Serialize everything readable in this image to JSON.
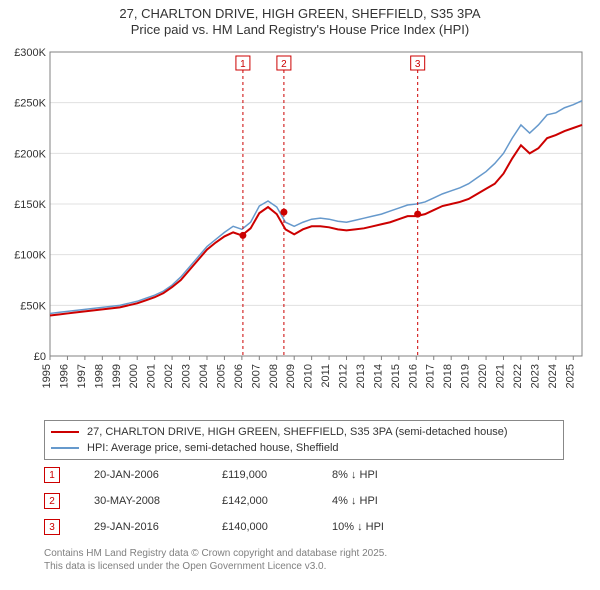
{
  "title": {
    "line1": "27, CHARLTON DRIVE, HIGH GREEN, SHEFFIELD, S35 3PA",
    "line2": "Price paid vs. HM Land Registry's House Price Index (HPI)",
    "fontsize": 13,
    "color": "#333333"
  },
  "chart": {
    "type": "line",
    "background_color": "#ffffff",
    "plot_border_color": "#808080",
    "grid_color": "#e0e0e0",
    "x": {
      "label_fontsize": 11,
      "label_color": "#333333",
      "ticks": [
        "1995",
        "1996",
        "1997",
        "1998",
        "1999",
        "2000",
        "2001",
        "2002",
        "2003",
        "2004",
        "2005",
        "2006",
        "2007",
        "2008",
        "2009",
        "2010",
        "2011",
        "2012",
        "2013",
        "2014",
        "2015",
        "2016",
        "2017",
        "2018",
        "2019",
        "2020",
        "2021",
        "2022",
        "2023",
        "2024",
        "2025"
      ],
      "lim": [
        1995,
        2025.5
      ]
    },
    "y": {
      "label_fontsize": 11,
      "label_color": "#333333",
      "ticks": [
        "£0",
        "£50K",
        "£100K",
        "£150K",
        "£200K",
        "£250K",
        "£300K"
      ],
      "lim": [
        0,
        300000
      ],
      "tick_step": 50000
    },
    "series": [
      {
        "name": "price_paid",
        "label": "27, CHARLTON DRIVE, HIGH GREEN, SHEFFIELD, S35 3PA (semi-detached house)",
        "color": "#cc0000",
        "line_width": 2,
        "x_start": 1995,
        "x_step": 0.5,
        "values": [
          40000,
          41000,
          42000,
          43000,
          44000,
          45000,
          46000,
          47000,
          48000,
          50000,
          52000,
          55000,
          58000,
          62000,
          68000,
          75000,
          85000,
          95000,
          105000,
          112000,
          118000,
          122000,
          119000,
          126000,
          141000,
          147000,
          140000,
          125000,
          120000,
          125000,
          128000,
          128000,
          127000,
          125000,
          124000,
          125000,
          126000,
          128000,
          130000,
          132000,
          135000,
          138000,
          138000,
          140000,
          144000,
          148000,
          150000,
          152000,
          155000,
          160000,
          165000,
          170000,
          180000,
          195000,
          208000,
          200000,
          205000,
          215000,
          218000,
          222000,
          225000,
          228000
        ]
      },
      {
        "name": "hpi",
        "label": "HPI: Average price, semi-detached house, Sheffield",
        "color": "#6699cc",
        "line_width": 1.5,
        "x_start": 1995,
        "x_step": 0.5,
        "values": [
          42000,
          43000,
          44000,
          45000,
          46000,
          47000,
          48000,
          49000,
          50000,
          52000,
          54000,
          57000,
          60000,
          64000,
          70000,
          78000,
          88000,
          98000,
          108000,
          115000,
          122000,
          128000,
          125000,
          132000,
          148000,
          153000,
          147000,
          132000,
          128000,
          132000,
          135000,
          136000,
          135000,
          133000,
          132000,
          134000,
          136000,
          138000,
          140000,
          143000,
          146000,
          149000,
          150000,
          152000,
          156000,
          160000,
          163000,
          166000,
          170000,
          176000,
          182000,
          190000,
          200000,
          215000,
          228000,
          220000,
          228000,
          238000,
          240000,
          245000,
          248000,
          252000
        ]
      }
    ],
    "sale_markers": [
      {
        "n": "1",
        "year": 2006.06,
        "price": 119000
      },
      {
        "n": "2",
        "year": 2008.41,
        "price": 142000
      },
      {
        "n": "3",
        "year": 2016.08,
        "price": 140000
      }
    ],
    "marker_style": {
      "border_color": "#cc0000",
      "text_color": "#cc0000",
      "box_size": 14,
      "fontsize": 10,
      "point_fill": "#cc0000",
      "dash": "3,3"
    }
  },
  "legend": {
    "border_color": "#888888",
    "fontsize": 11,
    "items": [
      {
        "color": "#cc0000",
        "width": 2.5,
        "label": "27, CHARLTON DRIVE, HIGH GREEN, SHEFFIELD, S35 3PA (semi-detached house)"
      },
      {
        "color": "#6699cc",
        "width": 1.5,
        "label": "HPI: Average price, semi-detached house, Sheffield"
      }
    ]
  },
  "marker_table": {
    "fontsize": 11,
    "rows": [
      {
        "n": "1",
        "date": "20-JAN-2006",
        "price": "£119,000",
        "hpi": "8% ↓ HPI"
      },
      {
        "n": "2",
        "date": "30-MAY-2008",
        "price": "£142,000",
        "hpi": "4% ↓ HPI"
      },
      {
        "n": "3",
        "date": "29-JAN-2016",
        "price": "£140,000",
        "hpi": "10% ↓ HPI"
      }
    ]
  },
  "footer": {
    "line1": "Contains HM Land Registry data © Crown copyright and database right 2025.",
    "line2": "This data is licensed under the Open Government Licence v3.0.",
    "fontsize": 10,
    "color": "#808080"
  }
}
